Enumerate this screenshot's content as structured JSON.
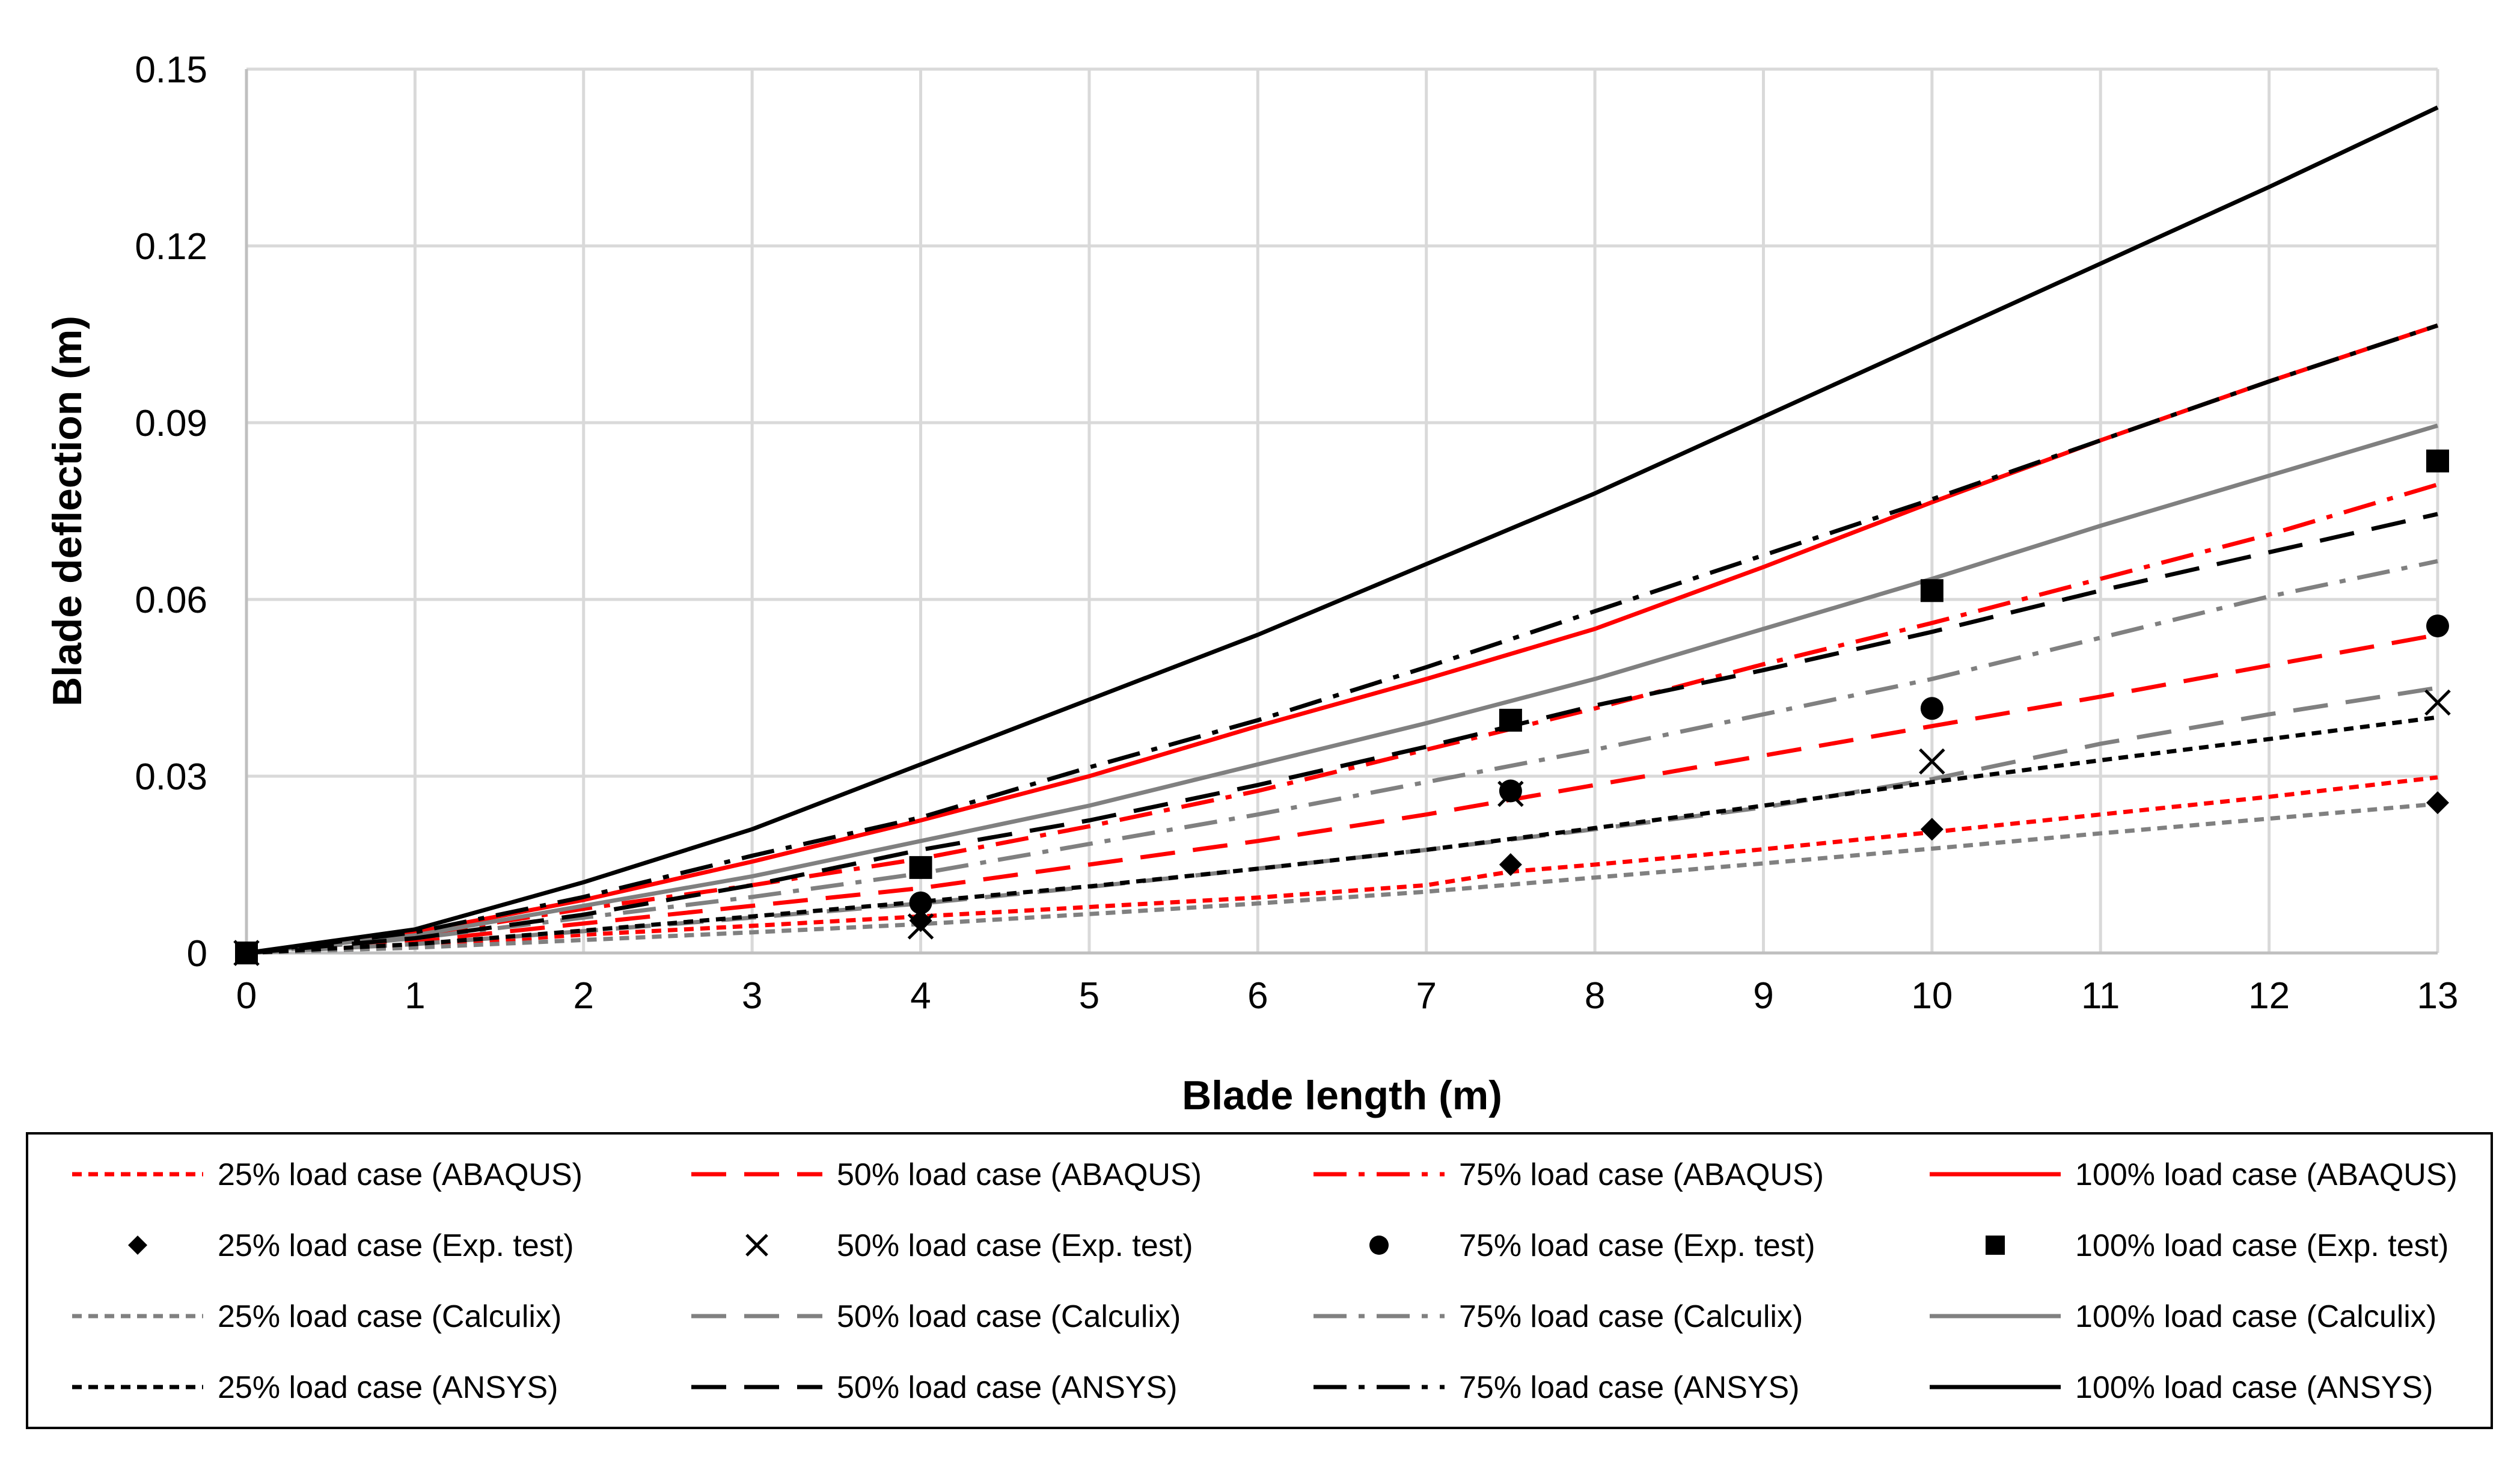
{
  "chart_data": {
    "type": "line",
    "title": "",
    "xlabel": "Blade length (m)",
    "ylabel": "Blade deflection (m)",
    "xlim": [
      0,
      13
    ],
    "ylim": [
      0,
      0.15
    ],
    "grid": true,
    "legend_position": "bottom",
    "x_ticks": [
      "0",
      "1",
      "2",
      "3",
      "4",
      "5",
      "6",
      "7",
      "8",
      "9",
      "10",
      "11",
      "12",
      "13"
    ],
    "y_ticks": [
      "0",
      "0.03",
      "0.06",
      "0.09",
      "0.12",
      "0.15"
    ],
    "series": [
      {
        "name": "25% load case (ABAQUS)",
        "kind": "line",
        "color": "#ff0000",
        "dash": "short-dash",
        "x": [
          0,
          1,
          2,
          3,
          4,
          5,
          6,
          7,
          7.5,
          8,
          9,
          10,
          11,
          12,
          13
        ],
        "y": [
          0,
          0.0012,
          0.0031,
          0.0046,
          0.0062,
          0.0078,
          0.0094,
          0.0115,
          0.0138,
          0.015,
          0.0176,
          0.0205,
          0.0235,
          0.0265,
          0.0298
        ]
      },
      {
        "name": "50% load case (ABAQUS)",
        "kind": "line",
        "color": "#ff0000",
        "dash": "long-dash",
        "x": [
          0,
          1,
          2,
          3,
          4,
          5,
          6,
          7,
          8,
          9,
          10,
          11,
          12,
          13
        ],
        "y": [
          0,
          0.002,
          0.005,
          0.008,
          0.011,
          0.015,
          0.019,
          0.0235,
          0.0285,
          0.0335,
          0.0385,
          0.0435,
          0.0488,
          0.054
        ]
      },
      {
        "name": "75% load case (ABAQUS)",
        "kind": "line",
        "color": "#ff0000",
        "dash": "dash-dot",
        "x": [
          0,
          1,
          2,
          3,
          4,
          5,
          6,
          7,
          8,
          9,
          10,
          11,
          12,
          13
        ],
        "y": [
          0,
          0.003,
          0.0075,
          0.0115,
          0.016,
          0.0215,
          0.0275,
          0.0345,
          0.0415,
          0.049,
          0.056,
          0.0635,
          0.071,
          0.0795
        ]
      },
      {
        "name": "100% load case (ABAQUS)",
        "kind": "line",
        "color": "#ff0000",
        "dash": "solid",
        "x": [
          0,
          1,
          2,
          3,
          4,
          5,
          6,
          7,
          8,
          9,
          10,
          11,
          12,
          13
        ],
        "y": [
          0,
          0.0035,
          0.009,
          0.0155,
          0.0225,
          0.03,
          0.0385,
          0.0465,
          0.055,
          0.0655,
          0.0765,
          0.087,
          0.097,
          0.1065
        ]
      },
      {
        "name": "25% load case (Exp. test)",
        "kind": "marker",
        "marker": "diamond",
        "color": "#000000",
        "x": [
          0,
          4,
          7.5,
          10,
          13
        ],
        "y": [
          0,
          0.0055,
          0.015,
          0.021,
          0.0255
        ]
      },
      {
        "name": "50% load case (Exp. test)",
        "kind": "marker",
        "marker": "cross",
        "color": "#000000",
        "x": [
          0,
          4,
          7.5,
          10,
          13
        ],
        "y": [
          0,
          0.0045,
          0.027,
          0.0325,
          0.0425
        ]
      },
      {
        "name": "75% load case (Exp. test)",
        "kind": "marker",
        "marker": "circle",
        "color": "#000000",
        "x": [
          0,
          4,
          7.5,
          10,
          13
        ],
        "y": [
          0,
          0.0085,
          0.0275,
          0.0415,
          0.0555
        ]
      },
      {
        "name": "100% load case (Exp. test)",
        "kind": "marker",
        "marker": "square",
        "color": "#000000",
        "x": [
          0,
          4,
          7.5,
          10,
          13
        ],
        "y": [
          0,
          0.0145,
          0.0395,
          0.0615,
          0.0835
        ]
      },
      {
        "name": "25% load case (Calculix)",
        "kind": "line",
        "color": "#808080",
        "dash": "short-dash",
        "x": [
          0,
          1,
          2,
          3,
          4,
          5,
          6,
          7,
          8,
          9,
          10,
          11,
          12,
          13
        ],
        "y": [
          0,
          0.0009,
          0.0022,
          0.0035,
          0.0049,
          0.0066,
          0.0084,
          0.0104,
          0.0128,
          0.0152,
          0.0177,
          0.0203,
          0.0228,
          0.0253
        ]
      },
      {
        "name": "50% load case (Calculix)",
        "kind": "line",
        "color": "#808080",
        "dash": "long-dash",
        "x": [
          0,
          1,
          2,
          3,
          4,
          5,
          6,
          7,
          8,
          9,
          10,
          11,
          12,
          13
        ],
        "y": [
          0,
          0.0015,
          0.0037,
          0.006,
          0.0084,
          0.0112,
          0.0143,
          0.0175,
          0.021,
          0.0247,
          0.0295,
          0.0355,
          0.0405,
          0.045
        ]
      },
      {
        "name": "75% load case (Calculix)",
        "kind": "line",
        "color": "#808080",
        "dash": "dash-dot",
        "x": [
          0,
          1,
          2,
          3,
          4,
          5,
          6,
          7,
          8,
          9,
          10,
          11,
          12,
          13
        ],
        "y": [
          0,
          0.0025,
          0.006,
          0.0095,
          0.0135,
          0.0185,
          0.0235,
          0.029,
          0.0345,
          0.0405,
          0.0465,
          0.0535,
          0.0605,
          0.0665
        ]
      },
      {
        "name": "100% load case (Calculix)",
        "kind": "line",
        "color": "#808080",
        "dash": "solid",
        "x": [
          0,
          1,
          2,
          3,
          4,
          5,
          6,
          7,
          8,
          9,
          10,
          11,
          12,
          13
        ],
        "y": [
          0,
          0.003,
          0.008,
          0.013,
          0.019,
          0.025,
          0.032,
          0.039,
          0.0465,
          0.055,
          0.0635,
          0.0725,
          0.081,
          0.0895
        ]
      },
      {
        "name": "25% load case (ANSYS)",
        "kind": "line",
        "color": "#000000",
        "dash": "short-dash",
        "x": [
          0,
          1,
          2,
          3,
          4,
          5,
          6,
          7,
          8,
          9,
          10,
          11,
          12,
          13
        ],
        "y": [
          0,
          0.0015,
          0.0038,
          0.0062,
          0.0087,
          0.0113,
          0.0143,
          0.0175,
          0.0212,
          0.025,
          0.029,
          0.0327,
          0.0363,
          0.04
        ]
      },
      {
        "name": "50% load case (ANSYS)",
        "kind": "line",
        "color": "#000000",
        "dash": "long-dash",
        "x": [
          0,
          1,
          2,
          3,
          4,
          5,
          6,
          7,
          8,
          9,
          10,
          11,
          12,
          13
        ],
        "y": [
          0,
          0.0025,
          0.0065,
          0.0115,
          0.0175,
          0.0225,
          0.0285,
          0.035,
          0.042,
          0.048,
          0.0545,
          0.0615,
          0.068,
          0.0745
        ]
      },
      {
        "name": "75% load case (ANSYS)",
        "kind": "line",
        "color": "#000000",
        "dash": "dash-dot",
        "x": [
          0,
          1,
          2,
          3,
          4,
          5,
          6,
          7,
          8,
          9,
          10,
          11,
          12,
          13
        ],
        "y": [
          0,
          0.0035,
          0.0095,
          0.0165,
          0.023,
          0.0315,
          0.0395,
          0.0485,
          0.058,
          0.0675,
          0.077,
          0.087,
          0.097,
          0.1065
        ]
      },
      {
        "name": "100% load case (ANSYS)",
        "kind": "line",
        "color": "#000000",
        "dash": "solid",
        "x": [
          0,
          1,
          2,
          3,
          4,
          5,
          6,
          7,
          8,
          9,
          10,
          11,
          12,
          13
        ],
        "y": [
          0,
          0.004,
          0.012,
          0.021,
          0.032,
          0.043,
          0.054,
          0.066,
          0.078,
          0.091,
          0.104,
          0.117,
          0.13,
          0.1435
        ]
      }
    ]
  }
}
